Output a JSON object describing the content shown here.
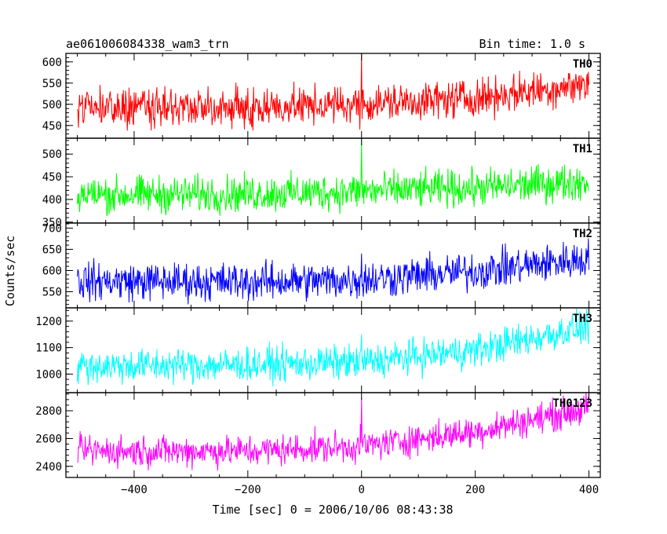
{
  "header": {
    "source_name": "ae061006084338_wam3_trn",
    "bin_time": "Bin time: 1.0 s"
  },
  "chart_data": {
    "type": "line",
    "title": "ae061006084338_wam3_trn",
    "subtitle": "Bin time: 1.0 s",
    "xlabel": "Time [sec] 0 = 2006/10/06 08:43:38",
    "ylabel": "Counts/sec",
    "xlim": [
      -520,
      420
    ],
    "x_range": [
      -500,
      400
    ],
    "x_ticks": [
      -400,
      -200,
      0,
      200,
      400
    ],
    "x_tick_labels": [
      "−400",
      "−200",
      "0",
      "200",
      "400"
    ],
    "grid": false,
    "panels": [
      {
        "name": "TH0",
        "color": "#ff0000",
        "ylim": [
          420,
          620
        ],
        "y_ticks": [
          450,
          500,
          550,
          600
        ],
        "y_tick_labels": [
          "450",
          "500",
          "550",
          "600"
        ],
        "baseline": [
          [
            -500,
            492
          ],
          [
            -200,
            492
          ],
          [
            0,
            500
          ],
          [
            200,
            515
          ],
          [
            400,
            548
          ]
        ],
        "noise": 22,
        "spike": {
          "x": 0,
          "y": 620
        }
      },
      {
        "name": "TH1",
        "color": "#00ff00",
        "ylim": [
          348,
          535
        ],
        "y_ticks": [
          350,
          400,
          450,
          500
        ],
        "y_tick_labels": [
          "350",
          "400",
          "450",
          "500"
        ],
        "baseline": [
          [
            -500,
            410
          ],
          [
            -200,
            412
          ],
          [
            0,
            418
          ],
          [
            200,
            425
          ],
          [
            400,
            440
          ]
        ],
        "noise": 20,
        "spike": {
          "x": 0,
          "y": 530
        }
      },
      {
        "name": "TH2",
        "color": "#0000ff",
        "ylim": [
          512,
          712
        ],
        "y_ticks": [
          550,
          600,
          650,
          700
        ],
        "y_tick_labels": [
          "550",
          "600",
          "650",
          "700"
        ],
        "baseline": [
          [
            -500,
            575
          ],
          [
            -200,
            573
          ],
          [
            0,
            578
          ],
          [
            200,
            598
          ],
          [
            400,
            628
          ]
        ],
        "noise": 22,
        "spike": {
          "x": 0,
          "y": 640
        }
      },
      {
        "name": "TH3",
        "color": "#00ffff",
        "ylim": [
          930,
          1250
        ],
        "y_ticks": [
          1000,
          1100,
          1200
        ],
        "y_tick_labels": [
          "1000",
          "1100",
          "1200"
        ],
        "baseline": [
          [
            -500,
            1030
          ],
          [
            -200,
            1035
          ],
          [
            0,
            1045
          ],
          [
            200,
            1090
          ],
          [
            400,
            1180
          ]
        ],
        "noise": 32,
        "spike": {
          "x": 0,
          "y": 1150
        }
      },
      {
        "name": "TH0123",
        "color": "#ff00ff",
        "ylim": [
          2320,
          2930
        ],
        "y_ticks": [
          2400,
          2600,
          2800
        ],
        "y_tick_labels": [
          "2400",
          "2600",
          "2800"
        ],
        "baseline": [
          [
            -500,
            2510
          ],
          [
            -200,
            2510
          ],
          [
            0,
            2545
          ],
          [
            200,
            2650
          ],
          [
            400,
            2820
          ]
        ],
        "noise": 55,
        "spike": {
          "x": 0,
          "y": 2895
        }
      }
    ]
  }
}
